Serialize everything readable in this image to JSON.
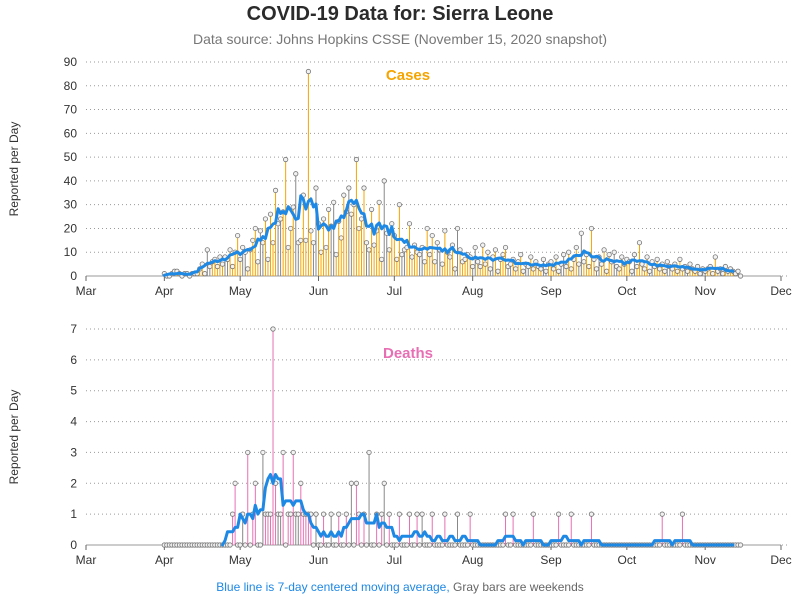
{
  "title": "COVID-19 Data for: Sierra Leone",
  "subtitle": "Data source: Johns Hopkins CSSE (November 15, 2020 snapshot)",
  "footnote": {
    "blue_text": "Blue line is 7-day centered moving average,",
    "gray_text": "Gray bars are weekends"
  },
  "colors": {
    "cases_accent": "#f5a400",
    "deaths_accent": "#e86fb4",
    "moving_average": "#1e88e5",
    "weekend": "#888888"
  },
  "chart_data": [
    {
      "type": "bar",
      "panel_label": "Cases",
      "ylabel": "Reported per Day",
      "xlabel": "",
      "x_ticks": [
        "Mar",
        "Apr",
        "May",
        "Jun",
        "Jul",
        "Aug",
        "Sep",
        "Oct",
        "Nov",
        "Dec"
      ],
      "ylim": [
        0,
        90
      ],
      "yticks": [
        0,
        10,
        20,
        30,
        40,
        50,
        60,
        70,
        80,
        90
      ],
      "grid": "horizontal dotted",
      "x_start": "2020-03-01",
      "values": [
        0,
        0,
        0,
        0,
        0,
        0,
        0,
        0,
        0,
        0,
        0,
        0,
        0,
        0,
        0,
        0,
        0,
        0,
        0,
        0,
        0,
        0,
        0,
        0,
        0,
        0,
        0,
        0,
        0,
        0,
        0,
        1,
        0,
        0,
        1,
        2,
        2,
        1,
        0,
        1,
        1,
        0,
        1,
        1,
        1,
        3,
        5,
        1,
        11,
        4,
        6,
        7,
        4,
        8,
        5,
        8,
        7,
        11,
        4,
        10,
        17,
        7,
        12,
        10,
        3,
        11,
        15,
        20,
        6,
        19,
        14,
        24,
        7,
        26,
        14,
        36,
        22,
        24,
        27,
        49,
        12,
        20,
        29,
        43,
        14,
        15,
        34,
        15,
        86,
        19,
        14,
        37,
        22,
        10,
        24,
        12,
        28,
        21,
        31,
        9,
        23,
        16,
        34,
        27,
        37,
        26,
        30,
        49,
        20,
        24,
        37,
        14,
        11,
        28,
        13,
        19,
        31,
        7,
        40,
        18,
        11,
        22,
        17,
        7,
        30,
        9,
        11,
        12,
        22,
        8,
        13,
        10,
        9,
        12,
        6,
        20,
        9,
        17,
        6,
        14,
        11,
        5,
        19,
        10,
        8,
        13,
        3,
        20,
        11,
        6,
        7,
        9,
        8,
        4,
        12,
        6,
        4,
        13,
        5,
        10,
        3,
        8,
        11,
        2,
        7,
        9,
        12,
        4,
        5,
        7,
        3,
        6,
        9,
        2,
        5,
        4,
        8,
        3,
        6,
        4,
        3,
        7,
        2,
        5,
        6,
        3,
        8,
        2,
        5,
        9,
        4,
        10,
        3,
        7,
        12,
        5,
        18,
        6,
        9,
        4,
        20,
        7,
        3,
        8,
        5,
        11,
        2,
        9,
        6,
        10,
        4,
        3,
        8,
        5,
        7,
        6,
        2,
        9,
        4,
        14,
        5,
        3,
        8,
        2,
        6,
        4,
        7,
        3,
        5,
        2,
        6,
        4,
        3,
        5,
        2,
        7,
        3,
        4,
        2,
        5,
        3,
        2,
        4,
        1,
        3,
        2,
        3,
        4,
        1,
        8,
        2,
        3,
        1,
        4,
        2,
        3,
        2,
        1,
        2,
        0
      ],
      "series": [
        {
          "name": "7-day average"
        }
      ]
    },
    {
      "type": "bar",
      "panel_label": "Deaths",
      "ylabel": "Reported per Day",
      "xlabel": "",
      "x_ticks": [
        "Mar",
        "Apr",
        "May",
        "Jun",
        "Jul",
        "Aug",
        "Sep",
        "Oct",
        "Nov",
        "Dec"
      ],
      "ylim": [
        0,
        7
      ],
      "yticks": [
        0,
        1,
        2,
        3,
        4,
        5,
        6,
        7
      ],
      "grid": "horizontal dotted",
      "x_start": "2020-03-01",
      "values": [
        0,
        0,
        0,
        0,
        0,
        0,
        0,
        0,
        0,
        0,
        0,
        0,
        0,
        0,
        0,
        0,
        0,
        0,
        0,
        0,
        0,
        0,
        0,
        0,
        0,
        0,
        0,
        0,
        0,
        0,
        0,
        0,
        0,
        0,
        0,
        0,
        0,
        0,
        0,
        0,
        0,
        0,
        0,
        0,
        0,
        0,
        0,
        0,
        0,
        0,
        0,
        0,
        0,
        0,
        0,
        0,
        0,
        0,
        1,
        2,
        0,
        0,
        1,
        0,
        3,
        0,
        1,
        2,
        0,
        0,
        3,
        1,
        1,
        1,
        7,
        2,
        1,
        1,
        3,
        0,
        1,
        1,
        3,
        1,
        1,
        2,
        1,
        1,
        1,
        1,
        0,
        1,
        0,
        0,
        1,
        0,
        0,
        1,
        0,
        0,
        1,
        0,
        0,
        1,
        0,
        2,
        0,
        2,
        1,
        0,
        1,
        0,
        3,
        0,
        0,
        1,
        0,
        1,
        2,
        0,
        1,
        0,
        0,
        0,
        1,
        0,
        0,
        0,
        1,
        0,
        0,
        1,
        0,
        1,
        0,
        0,
        0,
        1,
        0,
        0,
        0,
        0,
        1,
        0,
        0,
        0,
        0,
        1,
        0,
        0,
        0,
        0,
        1,
        0,
        0,
        0,
        0,
        0,
        0,
        0,
        0,
        0,
        0,
        0,
        0,
        0,
        1,
        0,
        0,
        1,
        0,
        0,
        0,
        0,
        0,
        0,
        0,
        1,
        0,
        0,
        0,
        0,
        0,
        0,
        0,
        0,
        0,
        1,
        0,
        0,
        0,
        0,
        1,
        0,
        0,
        0,
        0,
        0,
        0,
        0,
        1,
        0,
        0,
        0,
        0,
        0,
        0,
        0,
        0,
        0,
        0,
        0,
        0,
        0,
        0,
        0,
        0,
        0,
        0,
        0,
        0,
        0,
        0,
        0,
        0,
        0,
        0,
        0,
        1,
        0,
        0,
        0,
        0,
        0,
        0,
        0,
        1,
        0,
        0,
        0,
        0,
        0,
        0,
        0,
        0,
        0,
        0,
        0,
        0,
        0,
        0,
        0,
        0,
        0,
        0,
        0,
        0,
        0,
        0,
        0
      ],
      "series": [
        {
          "name": "7-day average"
        }
      ]
    }
  ]
}
